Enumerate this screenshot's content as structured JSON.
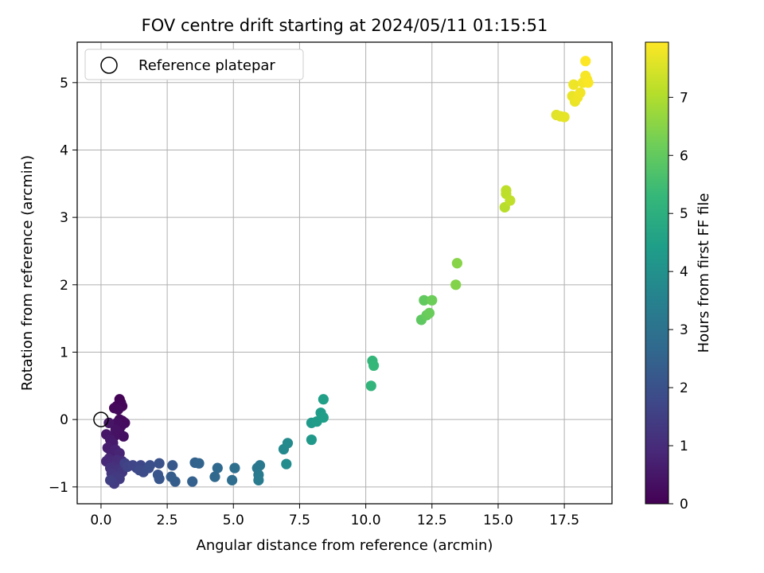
{
  "chart_data": {
    "type": "scatter",
    "title": "FOV centre drift starting at 2024/05/11 01:15:51",
    "xlabel": "Angular distance from reference (arcmin)",
    "ylabel": "Rotation from reference (arcmin)",
    "xlim": [
      -0.9,
      19.3
    ],
    "ylim": [
      -1.25,
      5.6
    ],
    "xticks": [
      0.0,
      2.5,
      5.0,
      7.5,
      10.0,
      12.5,
      15.0,
      17.5
    ],
    "xtick_labels": [
      "0.0",
      "2.5",
      "5.0",
      "7.5",
      "10.0",
      "12.5",
      "15.0",
      "17.5"
    ],
    "yticks": [
      -1,
      0,
      1,
      2,
      3,
      4,
      5
    ],
    "ytick_labels": [
      "−1",
      "0",
      "1",
      "2",
      "3",
      "4",
      "5"
    ],
    "grid": true,
    "legend": {
      "position": "upper-left",
      "entries": [
        {
          "label": "Reference platepar",
          "marker": "open-circle"
        }
      ]
    },
    "reference_point": {
      "x": 0,
      "y": 0
    },
    "colorbar": {
      "label": "Hours from first FF file",
      "colormap": "viridis",
      "range": [
        0,
        7.95
      ],
      "ticks": [
        0,
        1,
        2,
        3,
        4,
        5,
        6,
        7
      ],
      "tick_labels": [
        "0",
        "1",
        "2",
        "3",
        "4",
        "5",
        "6",
        "7"
      ],
      "stops": [
        "#440154",
        "#482878",
        "#3e4989",
        "#31688e",
        "#26828e",
        "#1f9e89",
        "#35b779",
        "#6ece58",
        "#b5de2b",
        "#fde725"
      ]
    },
    "points": [
      {
        "x": 0.7,
        "y": 0.3,
        "h": 0.05
      },
      {
        "x": 0.75,
        "y": 0.25,
        "h": 0.08
      },
      {
        "x": 0.6,
        "y": 0.2,
        "h": 0.1
      },
      {
        "x": 0.8,
        "y": 0.2,
        "h": 0.12
      },
      {
        "x": 0.5,
        "y": 0.17,
        "h": 0.15
      },
      {
        "x": 0.65,
        "y": 0.15,
        "h": 0.18
      },
      {
        "x": 0.7,
        "y": 0.0,
        "h": 0.2
      },
      {
        "x": 0.8,
        "y": -0.02,
        "h": 0.22
      },
      {
        "x": 0.9,
        "y": -0.05,
        "h": 0.25
      },
      {
        "x": 0.75,
        "y": -0.1,
        "h": 0.28
      },
      {
        "x": 0.6,
        "y": -0.05,
        "h": 0.3
      },
      {
        "x": 0.85,
        "y": -0.25,
        "h": 0.32
      },
      {
        "x": 0.7,
        "y": -0.2,
        "h": 0.35
      },
      {
        "x": 0.55,
        "y": -0.15,
        "h": 0.38
      },
      {
        "x": 0.5,
        "y": -0.25,
        "h": 0.4
      },
      {
        "x": 0.3,
        "y": -0.05,
        "h": 0.45
      },
      {
        "x": 0.2,
        "y": -0.22,
        "h": 0.5
      },
      {
        "x": 0.35,
        "y": -0.3,
        "h": 0.55
      },
      {
        "x": 0.45,
        "y": -0.35,
        "h": 0.6
      },
      {
        "x": 0.25,
        "y": -0.42,
        "h": 0.65
      },
      {
        "x": 0.4,
        "y": -0.5,
        "h": 0.7
      },
      {
        "x": 0.55,
        "y": -0.45,
        "h": 0.75
      },
      {
        "x": 0.7,
        "y": -0.5,
        "h": 0.8
      },
      {
        "x": 0.3,
        "y": -0.58,
        "h": 0.85
      },
      {
        "x": 0.2,
        "y": -0.62,
        "h": 0.9
      },
      {
        "x": 0.45,
        "y": -0.62,
        "h": 0.95
      },
      {
        "x": 0.6,
        "y": -0.6,
        "h": 1.0
      },
      {
        "x": 0.8,
        "y": -0.62,
        "h": 1.05
      },
      {
        "x": 0.5,
        "y": -0.7,
        "h": 1.1
      },
      {
        "x": 0.35,
        "y": -0.72,
        "h": 1.15
      },
      {
        "x": 0.65,
        "y": -0.75,
        "h": 1.2
      },
      {
        "x": 0.4,
        "y": -0.8,
        "h": 1.25
      },
      {
        "x": 0.8,
        "y": -0.78,
        "h": 1.3
      },
      {
        "x": 0.55,
        "y": -0.85,
        "h": 1.35
      },
      {
        "x": 0.7,
        "y": -0.88,
        "h": 1.4
      },
      {
        "x": 0.5,
        "y": -0.95,
        "h": 1.45
      },
      {
        "x": 0.35,
        "y": -0.9,
        "h": 1.5
      },
      {
        "x": 0.9,
        "y": -0.65,
        "h": 1.55
      },
      {
        "x": 1.0,
        "y": -0.7,
        "h": 1.6
      },
      {
        "x": 1.2,
        "y": -0.68,
        "h": 1.65
      },
      {
        "x": 1.35,
        "y": -0.72,
        "h": 1.7
      },
      {
        "x": 1.5,
        "y": -0.68,
        "h": 1.75
      },
      {
        "x": 1.45,
        "y": -0.75,
        "h": 1.8
      },
      {
        "x": 1.6,
        "y": -0.78,
        "h": 1.85
      },
      {
        "x": 1.8,
        "y": -0.72,
        "h": 1.9
      },
      {
        "x": 1.85,
        "y": -0.68,
        "h": 1.95
      },
      {
        "x": 2.2,
        "y": -0.65,
        "h": 2.0
      },
      {
        "x": 2.15,
        "y": -0.82,
        "h": 2.1
      },
      {
        "x": 2.2,
        "y": -0.88,
        "h": 2.15
      },
      {
        "x": 2.7,
        "y": -0.68,
        "h": 2.2
      },
      {
        "x": 2.65,
        "y": -0.85,
        "h": 2.3
      },
      {
        "x": 2.8,
        "y": -0.92,
        "h": 2.35
      },
      {
        "x": 3.45,
        "y": -0.92,
        "h": 2.45
      },
      {
        "x": 3.55,
        "y": -0.64,
        "h": 2.5
      },
      {
        "x": 3.7,
        "y": -0.65,
        "h": 2.55
      },
      {
        "x": 4.3,
        "y": -0.85,
        "h": 2.65
      },
      {
        "x": 4.4,
        "y": -0.72,
        "h": 2.7
      },
      {
        "x": 4.95,
        "y": -0.9,
        "h": 2.85
      },
      {
        "x": 5.05,
        "y": -0.72,
        "h": 2.9
      },
      {
        "x": 5.9,
        "y": -0.72,
        "h": 3.15
      },
      {
        "x": 6.0,
        "y": -0.68,
        "h": 3.2
      },
      {
        "x": 5.95,
        "y": -0.82,
        "h": 3.25
      },
      {
        "x": 5.95,
        "y": -0.9,
        "h": 3.3
      },
      {
        "x": 6.9,
        "y": -0.44,
        "h": 3.75
      },
      {
        "x": 7.05,
        "y": -0.35,
        "h": 3.8
      },
      {
        "x": 7.0,
        "y": -0.66,
        "h": 3.85
      },
      {
        "x": 7.95,
        "y": -0.3,
        "h": 4.25
      },
      {
        "x": 7.95,
        "y": -0.05,
        "h": 4.3
      },
      {
        "x": 8.15,
        "y": -0.03,
        "h": 4.35
      },
      {
        "x": 8.3,
        "y": 0.1,
        "h": 4.4
      },
      {
        "x": 8.4,
        "y": 0.03,
        "h": 4.45
      },
      {
        "x": 8.4,
        "y": 0.3,
        "h": 4.5
      },
      {
        "x": 10.2,
        "y": 0.5,
        "h": 5.2
      },
      {
        "x": 10.25,
        "y": 0.87,
        "h": 5.25
      },
      {
        "x": 10.3,
        "y": 0.8,
        "h": 5.3
      },
      {
        "x": 12.1,
        "y": 1.48,
        "h": 5.95
      },
      {
        "x": 12.2,
        "y": 1.77,
        "h": 6.0
      },
      {
        "x": 12.3,
        "y": 1.55,
        "h": 6.05
      },
      {
        "x": 12.4,
        "y": 1.58,
        "h": 6.1
      },
      {
        "x": 12.5,
        "y": 1.77,
        "h": 6.15
      },
      {
        "x": 13.4,
        "y": 2.0,
        "h": 6.45
      },
      {
        "x": 13.45,
        "y": 2.32,
        "h": 6.5
      },
      {
        "x": 15.25,
        "y": 3.15,
        "h": 7.1
      },
      {
        "x": 15.3,
        "y": 3.35,
        "h": 7.15
      },
      {
        "x": 15.3,
        "y": 3.4,
        "h": 7.18
      },
      {
        "x": 15.45,
        "y": 3.25,
        "h": 7.2
      },
      {
        "x": 17.2,
        "y": 4.52,
        "h": 7.6
      },
      {
        "x": 17.35,
        "y": 4.5,
        "h": 7.62
      },
      {
        "x": 17.5,
        "y": 4.49,
        "h": 7.65
      },
      {
        "x": 17.8,
        "y": 4.8,
        "h": 7.7
      },
      {
        "x": 17.9,
        "y": 4.72,
        "h": 7.72
      },
      {
        "x": 17.85,
        "y": 4.97,
        "h": 7.75
      },
      {
        "x": 18.0,
        "y": 4.78,
        "h": 7.78
      },
      {
        "x": 18.1,
        "y": 4.85,
        "h": 7.8
      },
      {
        "x": 18.2,
        "y": 5.0,
        "h": 7.82
      },
      {
        "x": 18.3,
        "y": 5.1,
        "h": 7.85
      },
      {
        "x": 18.35,
        "y": 5.05,
        "h": 7.88
      },
      {
        "x": 18.4,
        "y": 5.0,
        "h": 7.9
      },
      {
        "x": 18.3,
        "y": 5.32,
        "h": 7.95
      }
    ]
  }
}
